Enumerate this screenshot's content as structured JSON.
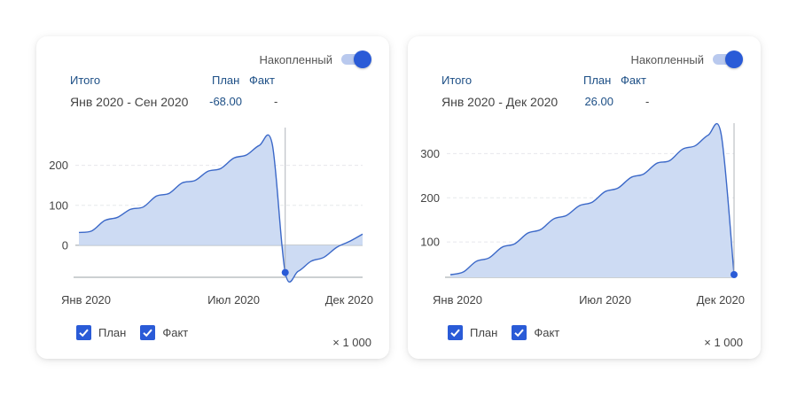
{
  "cards": [
    {
      "toggle_label": "Накопленный",
      "summary": {
        "title": "Итого",
        "plan_header": "План",
        "fact_header": "Факт",
        "range": "Янв 2020 - Сен 2020",
        "plan_value": "-68.00",
        "fact_value": "-"
      },
      "legend": {
        "plan": "План",
        "fact": "Факт"
      },
      "units": "× 1 000",
      "chart_data": {
        "type": "area",
        "x": [
          0,
          0.5,
          1,
          1.5,
          2,
          2.5,
          3,
          3.5,
          4,
          4.5,
          5,
          5.5,
          6,
          6.5,
          7,
          7.5,
          8,
          8.5,
          9,
          9.5,
          10,
          10.5,
          11
        ],
        "y": [
          32,
          36,
          62,
          70,
          90,
          96,
          123,
          130,
          156,
          162,
          185,
          192,
          218,
          226,
          250,
          252,
          -68,
          -65,
          -40,
          -30,
          -5,
          10,
          28
        ],
        "y_ticks": [
          0,
          100,
          200
        ],
        "ylim": [
          -80,
          290
        ],
        "x_tick_labels": [
          {
            "x": 0,
            "label": "Янв 2020"
          },
          {
            "x": 6,
            "label": "Июл 2020"
          },
          {
            "x": 11,
            "label": "Дек 2020"
          }
        ],
        "marker_x": 8,
        "grid": true,
        "colors": {
          "line": "#3b68c8",
          "fill": "#cddbf3",
          "marker": "#2a5bd7"
        }
      }
    },
    {
      "toggle_label": "Накопленный",
      "summary": {
        "title": "Итого",
        "plan_header": "План",
        "fact_header": "Факт",
        "range": "Янв 2020 - Дек 2020",
        "plan_value": "26.00",
        "fact_value": "-"
      },
      "legend": {
        "plan": "План",
        "fact": "Факт"
      },
      "units": "× 1 000",
      "chart_data": {
        "type": "area",
        "x": [
          0,
          0.5,
          1,
          1.5,
          2,
          2.5,
          3,
          3.5,
          4,
          4.5,
          5,
          5.5,
          6,
          6.5,
          7,
          7.5,
          8,
          8.5,
          9,
          9.5,
          10,
          10.5,
          11
        ],
        "y": [
          26,
          32,
          56,
          64,
          88,
          96,
          120,
          128,
          152,
          160,
          182,
          190,
          214,
          222,
          246,
          254,
          278,
          284,
          310,
          318,
          342,
          344,
          26
        ],
        "y_ticks": [
          100,
          200,
          300
        ],
        "ylim": [
          20,
          365
        ],
        "x_tick_labels": [
          {
            "x": 0,
            "label": "Янв 2020"
          },
          {
            "x": 6,
            "label": "Июл 2020"
          },
          {
            "x": 11,
            "label": "Дек 2020"
          }
        ],
        "marker_x": 11,
        "grid": true,
        "colors": {
          "line": "#3b68c8",
          "fill": "#cddbf3",
          "marker": "#2a5bd7"
        }
      }
    }
  ]
}
